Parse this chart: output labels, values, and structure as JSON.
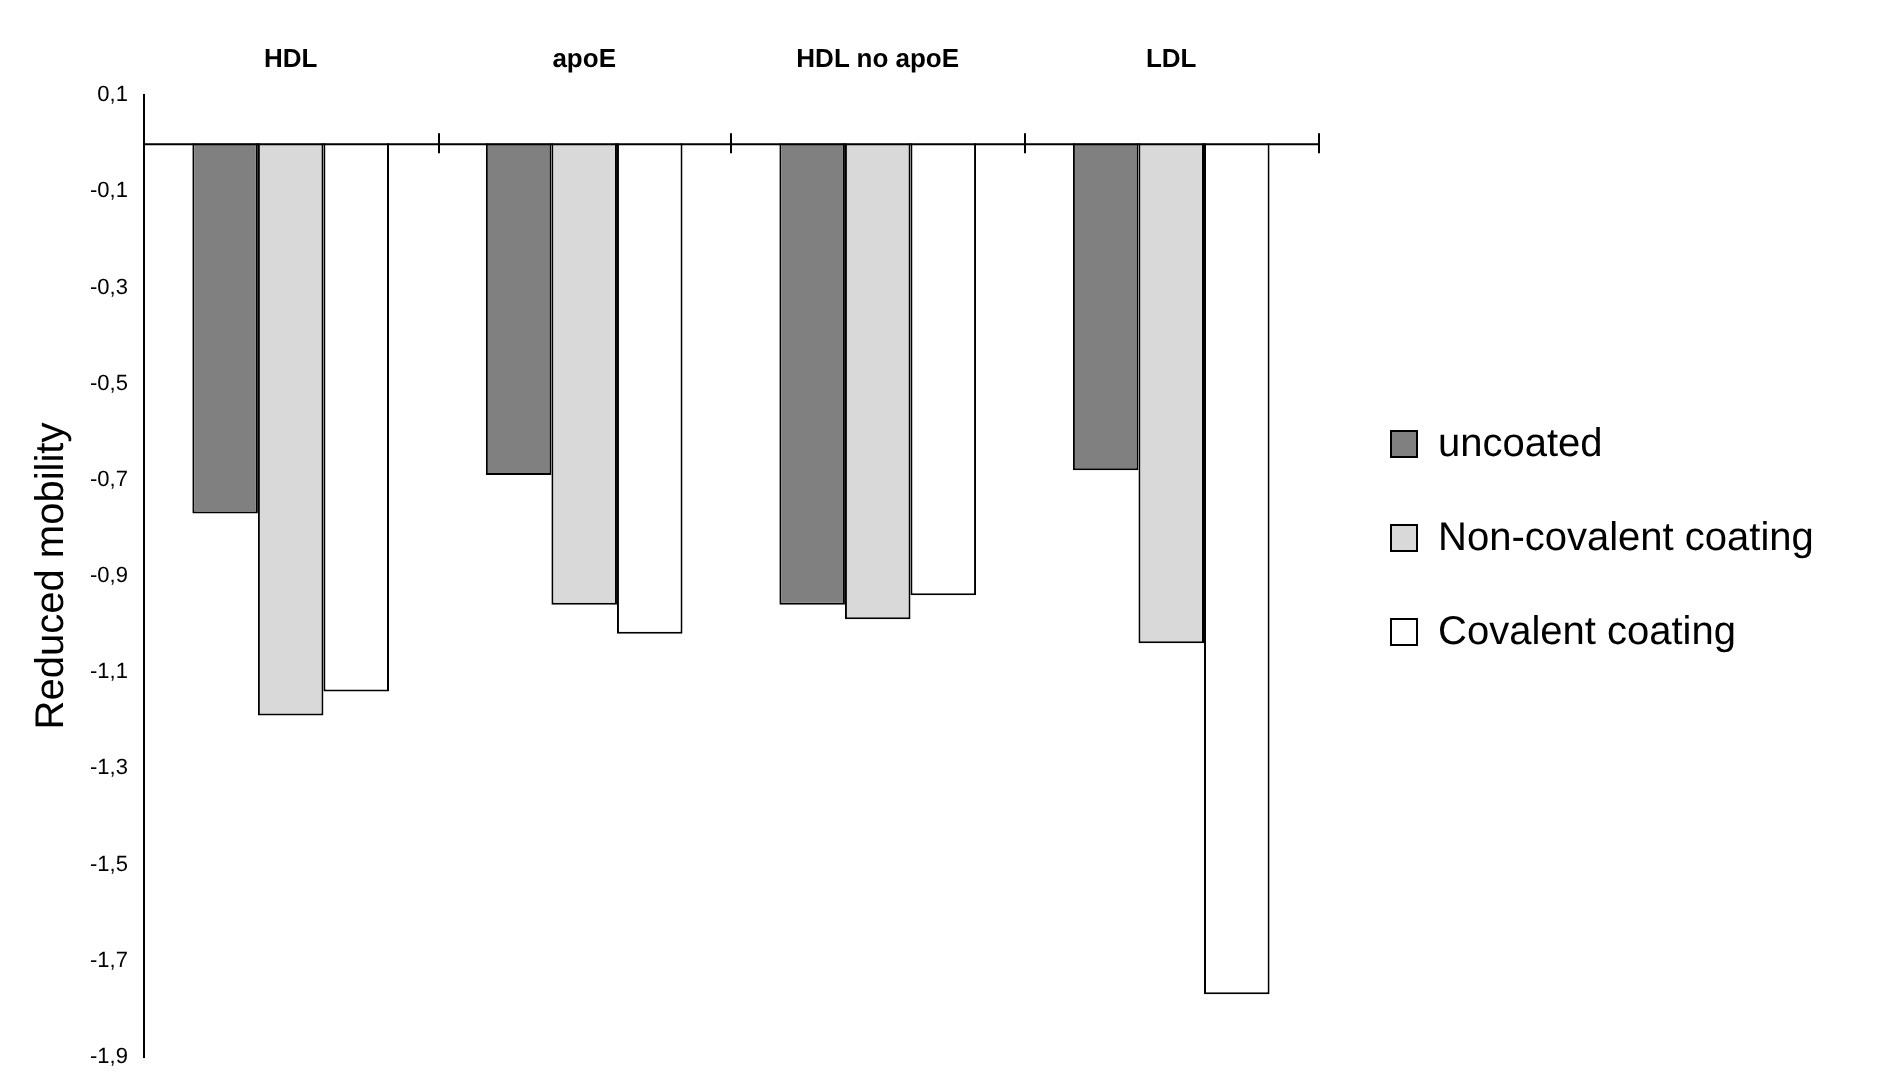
{
  "chart_data": {
    "type": "bar",
    "ylabel": "Reduced mobility",
    "categories": [
      "HDL",
      "apoE",
      "HDL no apoE",
      "LDL"
    ],
    "series": [
      {
        "name": "uncoated",
        "color": "#808080",
        "values": [
          -0.77,
          -0.69,
          -0.96,
          -0.68
        ]
      },
      {
        "name": "Non-covalent coating",
        "color": "#d9d9d9",
        "values": [
          -1.19,
          -0.96,
          -0.99,
          -1.04
        ]
      },
      {
        "name": "Covalent coating",
        "color": "#ffffff",
        "values": [
          -1.14,
          -1.02,
          -0.94,
          -1.77
        ]
      }
    ],
    "ylim": [
      -1.9,
      0.1
    ],
    "yticks": [
      {
        "value": 0.1,
        "label": "0,1"
      },
      {
        "value": -0.1,
        "label": "-0,1"
      },
      {
        "value": -0.3,
        "label": "-0,3"
      },
      {
        "value": -0.5,
        "label": "-0,5"
      },
      {
        "value": -0.7,
        "label": "-0,7"
      },
      {
        "value": -0.9,
        "label": "-0,9"
      },
      {
        "value": -1.1,
        "label": "-1,1"
      },
      {
        "value": -1.3,
        "label": "-1,3"
      },
      {
        "value": -1.5,
        "label": "-1,5"
      },
      {
        "value": -1.7,
        "label": "-1,7"
      },
      {
        "value": -1.9,
        "label": "-1,9"
      }
    ],
    "grid": false,
    "legend": "right"
  }
}
